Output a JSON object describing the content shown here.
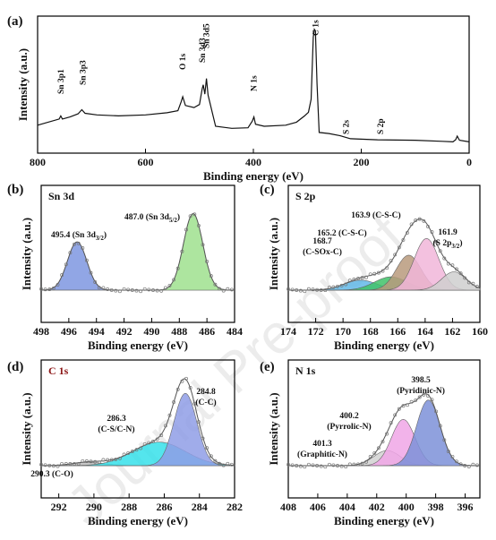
{
  "watermark": "Journal Pre-proof",
  "chart_data": [
    {
      "panel": "(a)",
      "type": "line",
      "xlabel": "Binding energy (eV)",
      "ylabel": "Intensity (a.u.)",
      "xlim": [
        800,
        0
      ],
      "xticks": [
        "800",
        "600",
        "400",
        "200",
        "0"
      ],
      "x_reversed": true,
      "series": [
        {
          "x": [
            800,
            760,
            757,
            754,
            740,
            725,
            718,
            712,
            690,
            650,
            600,
            560,
            540,
            534,
            531,
            526,
            510,
            500,
            495,
            493,
            490,
            487,
            484,
            470,
            440,
            410,
            402,
            399,
            396,
            380,
            340,
            320,
            305,
            298,
            293,
            289,
            287,
            285,
            282,
            278,
            260,
            240,
            220,
            170,
            100,
            50,
            30,
            25,
            22,
            18,
            0
          ],
          "y": [
            40,
            52,
            58,
            52,
            56,
            62,
            70,
            63,
            60,
            58,
            60,
            64,
            68,
            85,
            95,
            78,
            74,
            80,
            110,
            118,
            100,
            130,
            98,
            38,
            34,
            35,
            48,
            56,
            42,
            38,
            40,
            46,
            58,
            65,
            90,
            210,
            225,
            222,
            120,
            26,
            24,
            20,
            14,
            12,
            11,
            9,
            8,
            12,
            19,
            11,
            8
          ]
        }
      ],
      "annotations": [
        {
          "text": "Sn 3p1",
          "x": 757,
          "color": "#111111"
        },
        {
          "text": "Sn 3p3",
          "x": 716,
          "color": "#111111"
        },
        {
          "text": "O 1s",
          "x": 531,
          "color": "#1b7a1b"
        },
        {
          "text": "Sn 3d3",
          "x": 495,
          "color": "#111111"
        },
        {
          "text": "Sn 3d5",
          "x": 487,
          "color": "#111111"
        },
        {
          "text": "N 1s",
          "x": 399,
          "color": "#1f2f8c"
        },
        {
          "text": "C 1s",
          "x": 285,
          "color": "#b01a1a"
        },
        {
          "text": "S 2s",
          "x": 228,
          "color": "#1f2f8c"
        },
        {
          "text": "S 2p",
          "x": 164,
          "color": "#1f2f8c"
        }
      ]
    },
    {
      "panel": "(b)",
      "title": "Sn 3d",
      "type": "area",
      "xlabel": "Binding energy (eV)",
      "ylabel": "Intensity (a.u.)",
      "xlim": [
        498,
        484
      ],
      "xticks": [
        "498",
        "496",
        "494",
        "492",
        "490",
        "488",
        "486",
        "484"
      ],
      "peaks": [
        {
          "center": 495.4,
          "label": "495.4 (Sn 3d",
          "sub": "3/2",
          "close": ")",
          "fill": "#7e96e0",
          "height": 0.58,
          "sigma": 0.7
        },
        {
          "center": 487.0,
          "label": "487.0 (Sn 3d",
          "sub": "5/2",
          "close": ")",
          "fill": "#9fe08e",
          "height": 0.92,
          "sigma": 0.7
        }
      ]
    },
    {
      "panel": "(c)",
      "title": "S 2p",
      "type": "area",
      "xlabel": "Binding energy (eV)",
      "ylabel": "Intensity (a.u.)",
      "xlim": [
        174,
        160
      ],
      "xticks": [
        "174",
        "172",
        "170",
        "168",
        "166",
        "164",
        "162",
        "160"
      ],
      "peaks": [
        {
          "center": 168.7,
          "label": "168.7",
          "label2": "(C-SOx-C)",
          "fill": "#62b9e8",
          "height": 0.12,
          "sigma": 1.2
        },
        {
          "center": 166.5,
          "label": "",
          "fill": "#3fc268",
          "height": 0.16,
          "sigma": 1.2
        },
        {
          "center": 165.2,
          "label": "165.2 (C-S-C)",
          "fill": "#b89a7c",
          "height": 0.42,
          "sigma": 0.9
        },
        {
          "center": 163.9,
          "label": "163.9 (C-S-C)",
          "fill": "#f1b6d9",
          "height": 0.62,
          "sigma": 0.9
        },
        {
          "center": 161.9,
          "label": "161.9",
          "label2": "(S 2p",
          "sub": "3/2",
          "close": ")",
          "fill": "#cfcfcf",
          "height": 0.22,
          "sigma": 0.9
        }
      ]
    },
    {
      "panel": "(d)",
      "title": "C 1s",
      "type": "area",
      "xlabel": "Binding energy (eV)",
      "ylabel": "Intensity (a.u.)",
      "xlim": [
        293,
        282
      ],
      "xticks": [
        "292",
        "290",
        "288",
        "286",
        "284",
        "282"
      ],
      "peaks": [
        {
          "center": 290.3,
          "label": "290.3 (C-O)",
          "fill": "#bdbdbd",
          "height": 0.04,
          "sigma": 0.9
        },
        {
          "center": 286.3,
          "label": "286.3",
          "label2": "(C-S/C-N)",
          "fill": "#36e0ea",
          "height": 0.28,
          "sigma": 1.5
        },
        {
          "center": 284.8,
          "label": "284.8",
          "label2": "(C-C)",
          "fill": "#8f9de6",
          "height": 0.86,
          "sigma": 0.65
        }
      ]
    },
    {
      "panel": "(e)",
      "title": "N 1s",
      "type": "area",
      "xlabel": "Binding energy (eV)",
      "ylabel": "Intensity (a.u.)",
      "xlim": [
        408,
        395
      ],
      "xticks": [
        "408",
        "406",
        "404",
        "402",
        "400",
        "398",
        "396"
      ],
      "peaks": [
        {
          "center": 401.3,
          "label": "401.3",
          "label2": "(Graphitic-N)",
          "fill": "#d2d2d2",
          "height": 0.18,
          "sigma": 0.9
        },
        {
          "center": 400.2,
          "label": "400.2",
          "label2": "(Pyrrolic-N)",
          "fill": "#f0a6e6",
          "height": 0.55,
          "sigma": 0.8
        },
        {
          "center": 398.5,
          "label": "398.5",
          "label2": "(Pyridinic-N)",
          "fill": "#7c90d8",
          "height": 0.78,
          "sigma": 0.8
        }
      ]
    }
  ]
}
